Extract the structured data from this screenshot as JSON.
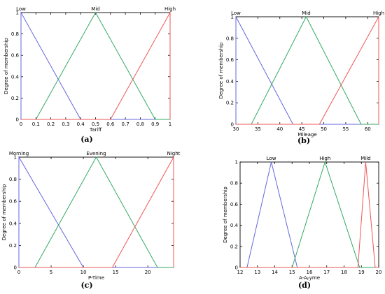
{
  "chart_data": [
    {
      "type": "line",
      "caption": "(a)",
      "xlabel": "Tariff",
      "ylabel": "Degree of membership",
      "xlim": [
        0,
        1
      ],
      "ylim": [
        0,
        1
      ],
      "xticks": [
        0,
        0.1,
        0.2,
        0.3,
        0.4,
        0.5,
        0.6,
        0.7,
        0.8,
        0.9,
        1
      ],
      "xtick_labels": [
        "0",
        "0.1",
        "0.2",
        "0.3",
        "0.4",
        "0.5",
        "0.6",
        "0.7",
        "0.8",
        "0.9",
        "1"
      ],
      "yticks": [
        0,
        0.2,
        0.4,
        0.6,
        0.8,
        1
      ],
      "ytick_labels": [
        "0",
        "0.2",
        "0.4",
        "0.6",
        "0.8",
        "1"
      ],
      "series": [
        {
          "name": "Low",
          "color": "#6666dd",
          "x": [
            0,
            0,
            0.4,
            1
          ],
          "y": [
            0,
            1,
            0,
            0
          ],
          "label_x": 0
        },
        {
          "name": "Mid",
          "color": "#33aa66",
          "x": [
            0,
            0.1,
            0.5,
            0.9,
            1
          ],
          "y": [
            0,
            0,
            1,
            0,
            0
          ],
          "label_x": 0.5
        },
        {
          "name": "High",
          "color": "#ee5555",
          "x": [
            0,
            0.6,
            1,
            1
          ],
          "y": [
            0,
            0,
            1,
            0
          ],
          "label_x": 1
        }
      ]
    },
    {
      "type": "line",
      "caption": "(b)",
      "xlabel": "Mileage",
      "ylabel": "Degree of membership",
      "xlim": [
        30,
        62.5
      ],
      "ylim": [
        0,
        1
      ],
      "xticks": [
        30,
        35,
        40,
        45,
        50,
        55,
        60
      ],
      "xtick_labels": [
        "30",
        "35",
        "40",
        "45",
        "50",
        "55",
        "60"
      ],
      "yticks": [
        0,
        0.2,
        0.4,
        0.6,
        0.8,
        1
      ],
      "ytick_labels": [
        "0",
        "0.2",
        "0.4",
        "0.6",
        "0.8",
        "1"
      ],
      "series": [
        {
          "name": "Low",
          "color": "#6666dd",
          "x": [
            30,
            30,
            43,
            62.5
          ],
          "y": [
            0,
            1,
            0,
            0
          ],
          "label_x": 30
        },
        {
          "name": "Mid",
          "color": "#33aa66",
          "x": [
            30,
            33.5,
            46,
            58.5,
            62.5
          ],
          "y": [
            0,
            0,
            1,
            0,
            0
          ],
          "label_x": 46
        },
        {
          "name": "High",
          "color": "#ee5555",
          "x": [
            30,
            49,
            62.5,
            62.5
          ],
          "y": [
            0,
            0,
            1,
            0
          ],
          "label_x": 62.5
        }
      ]
    },
    {
      "type": "line",
      "caption": "(c)",
      "xlabel": "P-Time",
      "ylabel": "Degree of membership",
      "xlim": [
        0,
        24
      ],
      "ylim": [
        0,
        1
      ],
      "xticks": [
        0,
        5,
        10,
        15,
        20
      ],
      "xtick_labels": [
        "0",
        "5",
        "10",
        "15",
        "20"
      ],
      "yticks": [
        0,
        0.2,
        0.4,
        0.6,
        0.8,
        1
      ],
      "ytick_labels": [
        "0",
        "0.2",
        "0.4",
        "0.6",
        "0.8",
        "1"
      ],
      "series": [
        {
          "name": "Morning",
          "color": "#6666dd",
          "x": [
            0,
            0,
            10,
            24
          ],
          "y": [
            0,
            1,
            0,
            0
          ],
          "label_x": 0
        },
        {
          "name": "Evening",
          "color": "#33aa66",
          "x": [
            0,
            2.5,
            12,
            21.5,
            24
          ],
          "y": [
            0,
            0,
            1,
            0,
            0
          ],
          "label_x": 12
        },
        {
          "name": "Night",
          "color": "#ee5555",
          "x": [
            0,
            14.5,
            24,
            24
          ],
          "y": [
            0,
            0,
            1,
            0
          ],
          "label_x": 24
        }
      ]
    },
    {
      "type": "line",
      "caption": "(d)",
      "xlabel": "A-Aₚyme",
      "ylabel": "Degree of membership",
      "xlim": [
        12,
        20
      ],
      "ylim": [
        0,
        1
      ],
      "xticks": [
        12,
        13,
        14,
        15,
        16,
        17,
        18,
        19,
        20
      ],
      "xtick_labels": [
        "12",
        "13",
        "14",
        "15",
        "16",
        "17",
        "18",
        "19",
        "20"
      ],
      "yticks": [
        0,
        0.2,
        0.4,
        0.6,
        0.8,
        1
      ],
      "ytick_labels": [
        "0",
        "0.2",
        "0.4",
        "0.6",
        "0.8",
        "1"
      ],
      "series": [
        {
          "name": "Low",
          "color": "#6666dd",
          "x": [
            12,
            12.4,
            13.8,
            15.3,
            20
          ],
          "y": [
            0,
            0,
            1,
            0,
            0
          ],
          "label_x": 13.8
        },
        {
          "name": "High",
          "color": "#33aa66",
          "x": [
            12,
            15,
            16.9,
            18.9,
            20
          ],
          "y": [
            0,
            0,
            1,
            0,
            0
          ],
          "label_x": 16.9
        },
        {
          "name": "Mild",
          "color": "#ee5555",
          "x": [
            12,
            18.8,
            19.25,
            19.8,
            20
          ],
          "y": [
            0,
            0,
            1,
            0,
            0
          ],
          "label_x": 19.25
        }
      ]
    }
  ]
}
